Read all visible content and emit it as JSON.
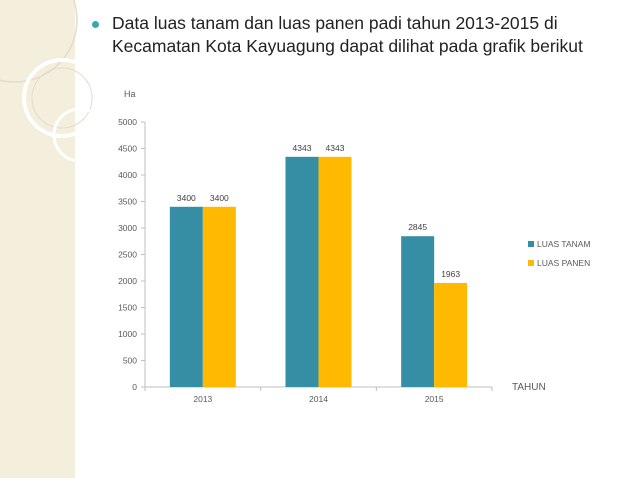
{
  "slide": {
    "text": "Data luas tanam dan luas panen padi tahun 2013-2015 di Kecamatan Kota Kayuagung dapat dilihat pada grafik berikut",
    "bullet_color": "#35a7b8",
    "band_color": "#f4eedd"
  },
  "chart_data": {
    "type": "bar",
    "title": "",
    "ylabel": "Ha",
    "xlabel": "TAHUN",
    "categories": [
      "2013",
      "2014",
      "2015"
    ],
    "series": [
      {
        "name": "LUAS TANAM",
        "values": [
          3400,
          4343,
          2845
        ],
        "color": "#358ea3"
      },
      {
        "name": "LUAS PANEN",
        "values": [
          3400,
          4343,
          1963
        ],
        "color": "#ffb900"
      }
    ],
    "ylim": [
      0,
      5000
    ],
    "yticks": [
      0,
      500,
      1000,
      1500,
      2000,
      2500,
      3000,
      3500,
      4000,
      4500,
      5000
    ],
    "data_labels": true,
    "grid": false,
    "legend": "right"
  }
}
